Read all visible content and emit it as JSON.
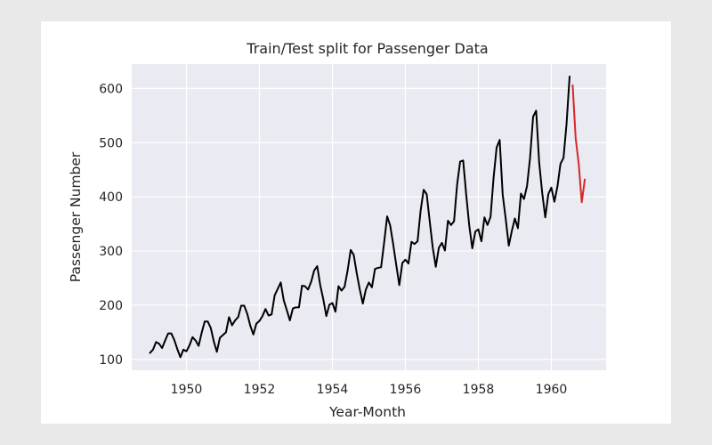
{
  "chart_data": {
    "type": "line",
    "title": "Train/Test split for Passenger Data",
    "xlabel": "Year-Month",
    "ylabel": "Passenger Number",
    "xlim": [
      1948.5,
      1961.5
    ],
    "ylim": [
      80,
      645
    ],
    "x_ticks": [
      1950,
      1952,
      1954,
      1956,
      1958,
      1960
    ],
    "y_ticks": [
      100,
      200,
      300,
      400,
      500,
      600
    ],
    "grid": true,
    "colors": {
      "plot_background": "#eaeaf2",
      "grid": "#ffffff",
      "train": "#000000",
      "test": "#d62728"
    },
    "series": [
      {
        "color": "#000000",
        "start": "1949-01",
        "values": [
          112,
          118,
          132,
          129,
          121,
          135,
          148,
          148,
          136,
          119,
          104,
          118,
          115,
          126,
          141,
          135,
          125,
          149,
          170,
          170,
          158,
          133,
          114,
          140,
          145,
          150,
          178,
          163,
          172,
          178,
          199,
          199,
          184,
          162,
          146,
          166,
          171,
          180,
          193,
          181,
          183,
          218,
          230,
          242,
          209,
          191,
          172,
          194,
          196,
          196,
          236,
          235,
          229,
          243,
          264,
          272,
          237,
          211,
          180,
          201,
          204,
          188,
          235,
          227,
          234,
          264,
          302,
          293,
          259,
          229,
          203,
          229,
          242,
          233,
          267,
          269,
          270,
          315,
          364,
          347,
          312,
          274,
          237,
          278,
          284,
          277,
          317,
          313,
          318,
          374,
          413,
          405,
          355,
          306,
          271,
          306,
          315,
          301,
          356,
          348,
          355,
          422,
          465,
          467,
          404,
          347,
          305,
          336,
          340,
          318,
          362,
          348,
          363,
          435,
          491,
          505,
          404,
          359,
          310,
          337,
          360,
          342,
          406,
          396,
          420,
          472,
          548,
          559,
          463,
          407,
          362,
          405,
          417,
          391,
          419,
          461,
          472,
          535,
          622
        ]
      },
      {
        "color": "#d62728",
        "start": "1960-08",
        "values": [
          606,
          508,
          461,
          390,
          432
        ]
      }
    ]
  }
}
